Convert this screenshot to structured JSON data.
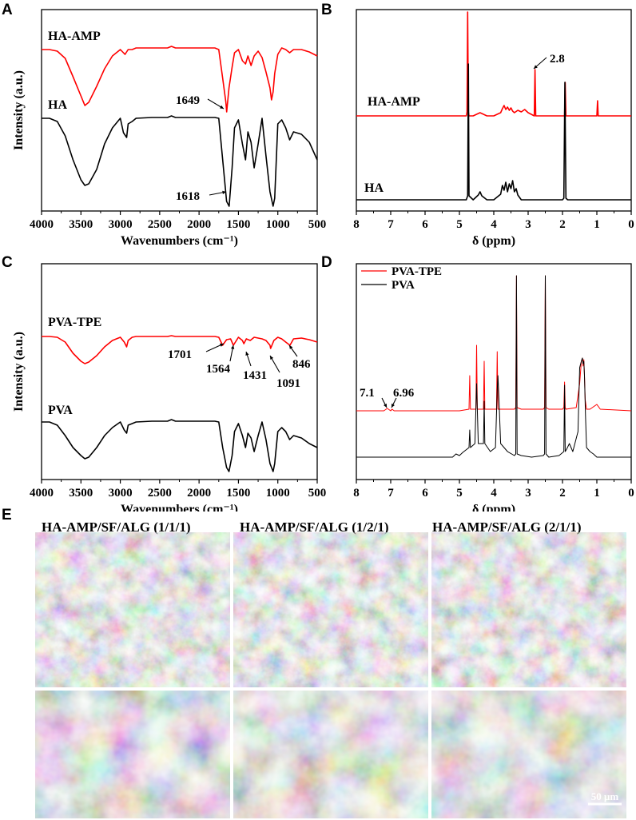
{
  "panel_letters": {
    "a": "A",
    "b": "B",
    "c": "C",
    "d": "D",
    "e": "E"
  },
  "chart_data": [
    {
      "id": "A",
      "type": "line",
      "xlabel": "Wavenumbers (cm⁻¹)",
      "ylabel": "Intensity (a.u.)",
      "xlim": [
        4000,
        500
      ],
      "xticks": [
        "4000",
        "3500",
        "3000",
        "2500",
        "2000",
        "1500",
        "1000",
        "500"
      ],
      "inverted_x": true,
      "series": [
        {
          "name": "HA-AMP",
          "color": "#ff0000",
          "x": [
            4000,
            3900,
            3800,
            3700,
            3600,
            3500,
            3450,
            3400,
            3300,
            3200,
            3100,
            3000,
            2960,
            2940,
            2900,
            2850,
            2800,
            2600,
            2400,
            2350,
            2300,
            2100,
            1900,
            1800,
            1750,
            1700,
            1660,
            1649,
            1620,
            1580,
            1550,
            1500,
            1450,
            1410,
            1380,
            1340,
            1300,
            1250,
            1200,
            1150,
            1100,
            1080,
            1060,
            1040,
            1000,
            950,
            900,
            850,
            800,
            700,
            600,
            500
          ],
          "y": [
            62,
            62,
            64,
            73,
            96,
            120,
            132,
            128,
            108,
            86,
            70,
            62,
            66,
            68,
            62,
            62,
            60,
            60,
            60,
            58,
            60,
            60,
            60,
            60,
            62,
            98,
            128,
            140,
            110,
            84,
            66,
            62,
            76,
            80,
            70,
            82,
            70,
            64,
            72,
            90,
            110,
            125,
            115,
            92,
            68,
            60,
            62,
            66,
            62,
            62,
            65,
            70
          ]
        },
        {
          "name": "HA",
          "color": "#000000",
          "x": [
            4000,
            3900,
            3800,
            3700,
            3600,
            3500,
            3450,
            3400,
            3300,
            3200,
            3100,
            3000,
            2960,
            2920,
            2900,
            2850,
            2800,
            2600,
            2400,
            2350,
            2300,
            2100,
            1900,
            1800,
            1750,
            1700,
            1650,
            1618,
            1580,
            1550,
            1500,
            1450,
            1410,
            1380,
            1340,
            1300,
            1250,
            1200,
            1150,
            1100,
            1060,
            1040,
            1000,
            950,
            900,
            850,
            800,
            700,
            600,
            500
          ],
          "y": [
            148,
            148,
            152,
            170,
            200,
            225,
            232,
            230,
            212,
            180,
            160,
            148,
            166,
            172,
            155,
            152,
            148,
            147,
            147,
            145,
            147,
            147,
            147,
            147,
            148,
            200,
            252,
            258,
            210,
            160,
            150,
            180,
            200,
            165,
            178,
            210,
            180,
            148,
            195,
            240,
            258,
            248,
            155,
            150,
            160,
            175,
            165,
            168,
            178,
            200
          ]
        }
      ],
      "labels": [
        "HA-AMP",
        "HA"
      ],
      "annotations": [
        "1649",
        "1618"
      ]
    },
    {
      "id": "B",
      "type": "line",
      "xlabel": "δ (ppm)",
      "xlim": [
        8,
        0
      ],
      "xticks": [
        "8",
        "7",
        "6",
        "5",
        "4",
        "3",
        "2",
        "1",
        "0"
      ],
      "inverted_x": true,
      "series": [
        {
          "name": "HA-AMP",
          "color": "#ff0000",
          "x": [
            8,
            5.0,
            4.8,
            4.78,
            4.76,
            4.74,
            4.72,
            4.6,
            4.4,
            4.2,
            4.0,
            3.8,
            3.75,
            3.7,
            3.65,
            3.6,
            3.55,
            3.5,
            3.45,
            3.4,
            3.3,
            3.2,
            3.1,
            3.0,
            2.82,
            2.8,
            2.78,
            2.5,
            2.2,
            2.0,
            1.94,
            1.92,
            1.9,
            1.7,
            1.4,
            1.1,
            1.0,
            0.98,
            0.96,
            0.9,
            0
          ],
          "y": [
            145,
            145,
            145,
            140,
            15,
            140,
            145,
            145,
            141,
            145,
            145,
            141,
            136,
            132,
            137,
            134,
            138,
            135,
            139,
            141,
            138,
            140,
            137,
            141,
            145,
            87,
            145,
            145,
            145,
            145,
            145,
            103,
            145,
            145,
            145,
            145,
            145,
            126,
            145,
            145,
            145
          ]
        },
        {
          "name": "HA",
          "color": "#000000",
          "x": [
            8,
            5.0,
            4.8,
            4.76,
            4.74,
            4.72,
            4.6,
            4.45,
            4.4,
            4.35,
            4.2,
            4.0,
            3.8,
            3.75,
            3.7,
            3.65,
            3.6,
            3.55,
            3.5,
            3.45,
            3.4,
            3.35,
            3.3,
            3.2,
            3.0,
            2.5,
            2.2,
            2.0,
            1.96,
            1.93,
            1.9,
            1.85,
            1.5,
            1.0,
            0
          ],
          "y": [
            250,
            250,
            250,
            245,
            80,
            245,
            250,
            244,
            240,
            245,
            250,
            250,
            243,
            232,
            238,
            228,
            240,
            230,
            236,
            226,
            240,
            236,
            244,
            250,
            250,
            250,
            250,
            250,
            248,
            103,
            248,
            250,
            250,
            250,
            250
          ]
        }
      ],
      "labels": [
        "HA-AMP",
        "HA"
      ],
      "annotations": [
        "2.8"
      ]
    },
    {
      "id": "C",
      "type": "line",
      "xlabel": "Wavenumbers (cm⁻¹)",
      "ylabel": "Intensity (a.u.)",
      "xlim": [
        4000,
        500
      ],
      "xticks": [
        "4000",
        "3500",
        "3000",
        "2500",
        "2000",
        "1500",
        "1000",
        "500"
      ],
      "inverted_x": true,
      "series": [
        {
          "name": "PVA-TPE",
          "color": "#ff0000",
          "x": [
            4000,
            3900,
            3800,
            3700,
            3600,
            3500,
            3450,
            3400,
            3300,
            3200,
            3100,
            3000,
            2950,
            2920,
            2900,
            2850,
            2800,
            2600,
            2400,
            2350,
            2300,
            2100,
            1900,
            1800,
            1750,
            1701,
            1650,
            1600,
            1564,
            1500,
            1450,
            1431,
            1400,
            1350,
            1300,
            1250,
            1200,
            1150,
            1100,
            1091,
            1050,
            1000,
            950,
            900,
            846,
            800,
            700,
            600,
            500
          ],
          "y": [
            421,
            421,
            422,
            428,
            442,
            452,
            455,
            453,
            445,
            434,
            426,
            422,
            428,
            434,
            426,
            422,
            421,
            421,
            421,
            420,
            421,
            421,
            421,
            421,
            422,
            432,
            425,
            424,
            432,
            422,
            426,
            430,
            424,
            426,
            422,
            423,
            424,
            426,
            432,
            436,
            426,
            422,
            424,
            428,
            432,
            424,
            423,
            425,
            428
          ]
        },
        {
          "name": "PVA",
          "color": "#000000",
          "x": [
            4000,
            3900,
            3800,
            3700,
            3600,
            3500,
            3450,
            3400,
            3300,
            3200,
            3100,
            3000,
            2950,
            2920,
            2900,
            2850,
            2800,
            2600,
            2400,
            2350,
            2300,
            2100,
            1900,
            1800,
            1750,
            1700,
            1650,
            1620,
            1580,
            1550,
            1500,
            1450,
            1410,
            1380,
            1340,
            1300,
            1250,
            1200,
            1150,
            1100,
            1060,
            1040,
            1000,
            950,
            900,
            850,
            800,
            700,
            600,
            500
          ],
          "y": [
            528,
            528,
            532,
            545,
            560,
            570,
            574,
            572,
            560,
            545,
            535,
            528,
            538,
            542,
            532,
            530,
            528,
            527,
            527,
            525,
            527,
            527,
            527,
            527,
            528,
            560,
            585,
            590,
            570,
            540,
            530,
            545,
            560,
            542,
            548,
            565,
            545,
            528,
            550,
            580,
            590,
            580,
            540,
            535,
            540,
            550,
            545,
            548,
            555,
            560
          ]
        }
      ],
      "labels": [
        "PVA-TPE",
        "PVA"
      ],
      "annotations": [
        "1701",
        "1564",
        "1431",
        "1091",
        "846"
      ]
    },
    {
      "id": "D",
      "type": "line",
      "xlabel": "δ (ppm)",
      "xlim": [
        8,
        0
      ],
      "xticks": [
        "8",
        "7",
        "6",
        "5",
        "4",
        "3",
        "2",
        "1",
        "0"
      ],
      "inverted_x": true,
      "legend": "top-left",
      "series": [
        {
          "name": "PVA-TPE",
          "color": "#ff0000",
          "x": [
            8,
            7.2,
            7.1,
            7.0,
            6.96,
            6.9,
            5.0,
            4.72,
            4.7,
            4.68,
            4.52,
            4.5,
            4.48,
            4.3,
            4.28,
            4.26,
            3.92,
            3.9,
            3.88,
            3.6,
            3.4,
            3.36,
            3.34,
            3.32,
            3.2,
            2.56,
            2.52,
            2.5,
            2.48,
            2.4,
            2.0,
            1.96,
            1.94,
            1.92,
            1.9,
            1.6,
            1.5,
            1.45,
            1.42,
            1.4,
            1.38,
            1.36,
            1.34,
            1.3,
            1.2,
            1.0,
            0.9,
            0
          ],
          "y": [
            514,
            514,
            511,
            514,
            512,
            514,
            514,
            512,
            470,
            512,
            512,
            432,
            512,
            512,
            452,
            512,
            512,
            440,
            512,
            512,
            512,
            510,
            345,
            510,
            512,
            512,
            510,
            345,
            510,
            512,
            512,
            510,
            478,
            510,
            512,
            510,
            480,
            452,
            448,
            458,
            450,
            470,
            500,
            512,
            512,
            506,
            512,
            514
          ]
        },
        {
          "name": "PVA",
          "color": "#000000",
          "x": [
            8,
            5.2,
            5.1,
            5.0,
            4.9,
            4.72,
            4.7,
            4.68,
            4.55,
            4.5,
            4.45,
            4.3,
            4.28,
            4.26,
            4.1,
            3.95,
            3.9,
            3.88,
            3.85,
            3.8,
            3.7,
            3.6,
            3.4,
            3.36,
            3.34,
            3.32,
            3.2,
            2.9,
            2.56,
            2.52,
            2.5,
            2.48,
            2.4,
            2.1,
            1.96,
            1.94,
            1.92,
            1.88,
            1.8,
            1.7,
            1.55,
            1.5,
            1.45,
            1.42,
            1.4,
            1.38,
            1.36,
            1.33,
            1.3,
            1.2,
            1.1,
            1.0,
            0
          ],
          "y": [
            572,
            572,
            568,
            570,
            566,
            560,
            538,
            560,
            555,
            480,
            555,
            555,
            502,
            555,
            565,
            560,
            488,
            470,
            500,
            555,
            560,
            565,
            570,
            568,
            345,
            568,
            570,
            572,
            570,
            568,
            345,
            568,
            572,
            570,
            565,
            482,
            565,
            562,
            555,
            565,
            540,
            460,
            452,
            448,
            455,
            452,
            470,
            520,
            560,
            565,
            568,
            572,
            572
          ]
        }
      ],
      "labels": [
        "PVA-TPE",
        "PVA"
      ],
      "annotations": [
        "7.1",
        "6.96"
      ]
    }
  ],
  "sem_panel": {
    "titles": [
      "HA-AMP/SF/ALG (1/1/1)",
      "HA-AMP/SF/ALG (1/2/1)",
      "HA-AMP/SF/ALG (2/1/1)"
    ],
    "scale_bar": "50 μm"
  }
}
